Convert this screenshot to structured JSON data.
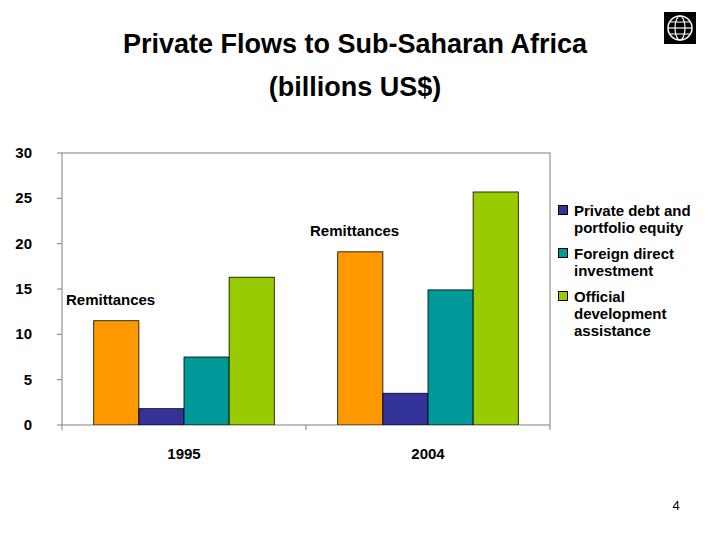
{
  "chart_data": {
    "type": "bar",
    "title": "Private Flows to Sub-Saharan Africa",
    "subtitle": "(billions US$)",
    "categories": [
      "1995",
      "2004"
    ],
    "series": [
      {
        "color": "#ff9900",
        "values": [
          11.5,
          19.1
        ]
      },
      {
        "name": "Private debt and portfolio equity",
        "color": "#333399",
        "values": [
          1.8,
          3.5
        ]
      },
      {
        "name": "Foreign direct investment",
        "color": "#009999",
        "values": [
          7.5,
          14.9
        ]
      },
      {
        "name": "Official development assistance",
        "color": "#99cc00",
        "values": [
          16.3,
          25.7
        ]
      }
    ],
    "annotations": [
      "Remittances",
      "Remittances"
    ],
    "ylim": [
      0,
      30
    ],
    "yticks": [
      0,
      5,
      10,
      15,
      20,
      25,
      30
    ],
    "grid": false,
    "legend": "right",
    "footer": "4"
  }
}
